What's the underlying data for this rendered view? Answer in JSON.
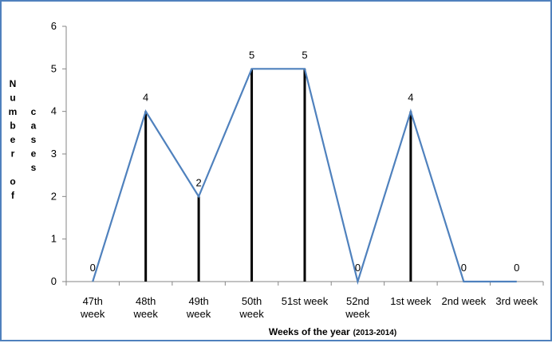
{
  "chart_data": {
    "type": "line",
    "categories": [
      [
        "47th",
        "week"
      ],
      [
        "48th",
        "week"
      ],
      [
        "49th",
        "week"
      ],
      [
        "50th",
        "week"
      ],
      [
        "51st week"
      ],
      [
        "52nd",
        "week"
      ],
      [
        "1st week"
      ],
      [
        "2nd week"
      ],
      [
        "3rd week"
      ]
    ],
    "values": [
      0,
      4,
      2,
      5,
      5,
      0,
      4,
      0,
      0
    ],
    "data_labels": [
      "0",
      "4",
      "2",
      "5",
      "5",
      "0",
      "4",
      "0",
      "0"
    ],
    "drop_lines": [
      false,
      true,
      true,
      true,
      true,
      false,
      true,
      false,
      false
    ],
    "ylim": [
      0,
      6
    ],
    "yticks": [
      "0",
      "1",
      "2",
      "3",
      "4",
      "5",
      "6"
    ],
    "ylabel_columns": [
      [
        "N",
        "u",
        "m",
        "b",
        "e",
        "r",
        "",
        "o",
        "f"
      ],
      [
        "",
        "",
        "c",
        "a",
        "s",
        "e",
        "s"
      ]
    ],
    "xlabel": "Weeks of the year",
    "xlabel_suffix": "(2013-2014)",
    "grid": false,
    "line_color": "#4f81bd",
    "drop_line_color": "#000000",
    "axis_color": "#868686",
    "frame_color": "#4f81bd"
  }
}
